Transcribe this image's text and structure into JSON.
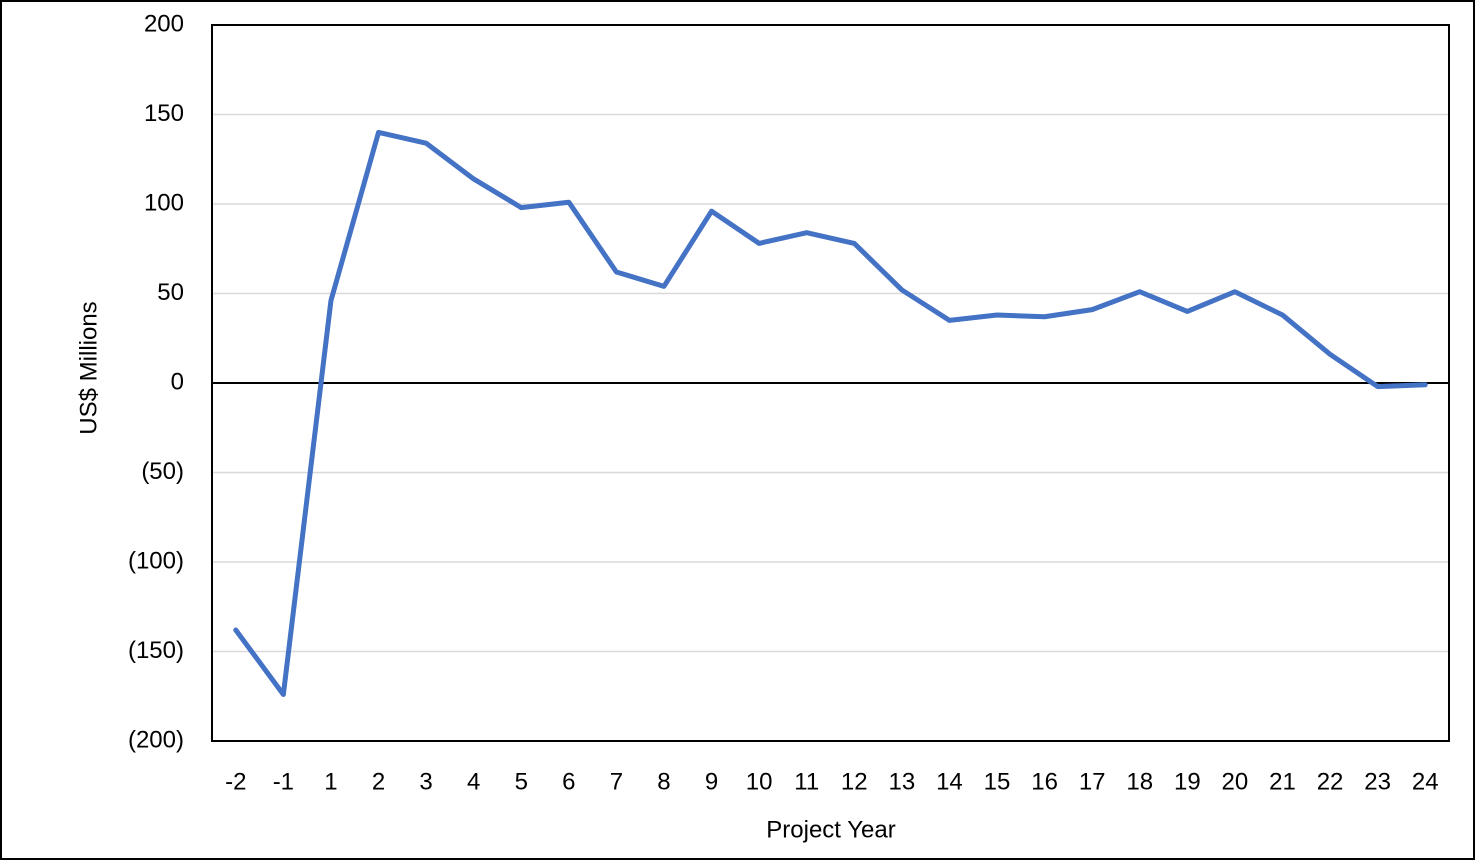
{
  "chart_data": {
    "type": "line",
    "y_label": "US$ Millions",
    "x_label": "Project Year",
    "categories": [
      "-2",
      "-1",
      "1",
      "2",
      "3",
      "4",
      "5",
      "6",
      "7",
      "8",
      "9",
      "10",
      "11",
      "12",
      "13",
      "14",
      "15",
      "16",
      "17",
      "18",
      "19",
      "20",
      "21",
      "22",
      "23",
      "24"
    ],
    "series": [
      {
        "color": "#4472c4",
        "values": [
          -138,
          -174,
          46,
          140,
          134,
          114,
          98,
          101,
          62,
          54,
          96,
          78,
          84,
          78,
          52,
          35,
          38,
          37,
          41,
          51,
          40,
          51,
          38,
          16,
          -2,
          -1
        ]
      }
    ],
    "ylim": [
      -200,
      200
    ],
    "yticks": [
      {
        "value": -200,
        "label": "(200)"
      },
      {
        "value": -150,
        "label": "(150)"
      },
      {
        "value": -100,
        "label": "(100)"
      },
      {
        "value": -50,
        "label": "(50)"
      },
      0,
      50,
      100,
      150,
      200
    ],
    "grid": true
  }
}
